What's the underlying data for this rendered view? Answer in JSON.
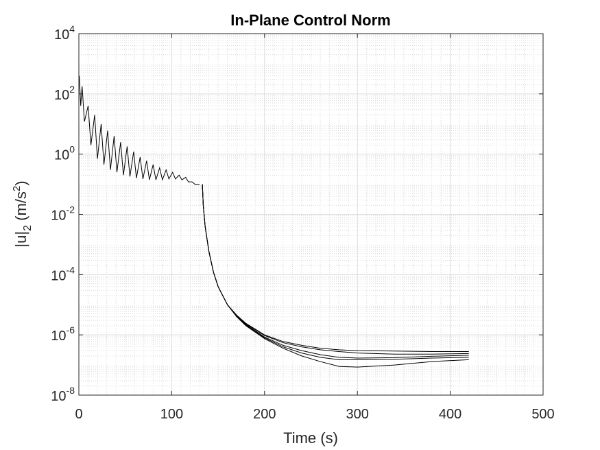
{
  "chart_data": {
    "type": "line",
    "title": "In-Plane Control Norm",
    "xlabel": "Time (s)",
    "ylabel": {
      "base": "|u|",
      "sub": "2",
      "unit_open": " (m/s",
      "unit_sup": "2",
      "unit_close": ")"
    },
    "xlim": [
      0,
      500
    ],
    "ylim": [
      1e-08,
      10000.0
    ],
    "yscale": "log",
    "grid": true,
    "minor_grid": true,
    "xticks": [
      {
        "value": 0,
        "label": "0"
      },
      {
        "value": 100,
        "label": "100"
      },
      {
        "value": 200,
        "label": "200"
      },
      {
        "value": 300,
        "label": "300"
      },
      {
        "value": 400,
        "label": "400"
      },
      {
        "value": 500,
        "label": "500"
      }
    ],
    "yticks": [
      {
        "value": -8,
        "base": "10",
        "exp": "-8"
      },
      {
        "value": -6,
        "base": "10",
        "exp": "-6"
      },
      {
        "value": -4,
        "base": "10",
        "exp": "-4"
      },
      {
        "value": -2,
        "base": "10",
        "exp": "-2"
      },
      {
        "value": 0,
        "base": "10",
        "exp": "0"
      },
      {
        "value": 2,
        "base": "10",
        "exp": "2"
      },
      {
        "value": 4,
        "base": "10",
        "exp": "4"
      }
    ],
    "line_color": "#000000",
    "oscillation": {
      "t_end": 132,
      "peaks": [
        [
          0.5,
          400
        ],
        [
          3.5,
          180
        ],
        [
          10,
          40
        ],
        [
          17,
          20
        ],
        [
          24,
          10
        ],
        [
          31,
          6
        ],
        [
          38,
          4
        ],
        [
          45,
          2.5
        ],
        [
          52,
          1.8
        ],
        [
          59,
          1.2
        ],
        [
          66,
          0.8
        ],
        [
          73,
          0.6
        ],
        [
          80,
          0.45
        ],
        [
          87,
          0.35
        ],
        [
          94,
          0.3
        ],
        [
          101,
          0.25
        ],
        [
          108,
          0.2
        ],
        [
          115,
          0.17
        ],
        [
          122,
          0.12
        ],
        [
          130,
          0.1
        ]
      ],
      "troughs": [
        [
          2,
          40
        ],
        [
          6,
          12
        ],
        [
          13,
          2
        ],
        [
          20,
          0.7
        ],
        [
          27,
          0.45
        ],
        [
          34,
          0.3
        ],
        [
          41,
          0.25
        ],
        [
          48,
          0.2
        ],
        [
          55,
          0.18
        ],
        [
          62,
          0.16
        ],
        [
          69,
          0.15
        ],
        [
          76,
          0.14
        ],
        [
          83,
          0.14
        ],
        [
          90,
          0.14
        ],
        [
          97,
          0.15
        ],
        [
          104,
          0.15
        ],
        [
          111,
          0.14
        ],
        [
          118,
          0.12
        ],
        [
          125,
          0.1
        ]
      ]
    },
    "series": [
      {
        "points": [
          [
            133,
            0.1
          ],
          [
            134,
            0.02
          ],
          [
            136,
            0.004
          ],
          [
            140,
            0.0006
          ],
          [
            145,
            0.00012
          ],
          [
            150,
            4e-05
          ],
          [
            160,
            1e-05
          ],
          [
            170,
            4.5e-06
          ],
          [
            180,
            2.4e-06
          ],
          [
            200,
            1e-06
          ],
          [
            220,
            6e-07
          ],
          [
            240,
            4.5e-07
          ],
          [
            260,
            3.6e-07
          ],
          [
            280,
            3.2e-07
          ],
          [
            300,
            3e-07
          ],
          [
            340,
            2.9e-07
          ],
          [
            380,
            2.8e-07
          ],
          [
            420,
            2.8e-07
          ]
        ]
      },
      {
        "points": [
          [
            133,
            0.1
          ],
          [
            134,
            0.02
          ],
          [
            136,
            0.004
          ],
          [
            140,
            0.0006
          ],
          [
            145,
            0.00012
          ],
          [
            150,
            4e-05
          ],
          [
            160,
            1e-05
          ],
          [
            170,
            4.3e-06
          ],
          [
            180,
            2.3e-06
          ],
          [
            200,
            9.5e-07
          ],
          [
            220,
            5.5e-07
          ],
          [
            240,
            4e-07
          ],
          [
            260,
            3.2e-07
          ],
          [
            280,
            2.8e-07
          ],
          [
            300,
            2.5e-07
          ],
          [
            340,
            2.3e-07
          ],
          [
            380,
            2.3e-07
          ],
          [
            420,
            2.4e-07
          ]
        ]
      },
      {
        "points": [
          [
            133,
            0.1
          ],
          [
            134,
            0.02
          ],
          [
            136,
            0.004
          ],
          [
            140,
            0.0006
          ],
          [
            145,
            0.00012
          ],
          [
            150,
            4e-05
          ],
          [
            160,
            1e-05
          ],
          [
            170,
            4.2e-06
          ],
          [
            180,
            2.2e-06
          ],
          [
            200,
            8.5e-07
          ],
          [
            220,
            4.5e-07
          ],
          [
            240,
            3e-07
          ],
          [
            260,
            2.2e-07
          ],
          [
            280,
            1.8e-07
          ],
          [
            300,
            1.7e-07
          ],
          [
            340,
            1.75e-07
          ],
          [
            380,
            1.95e-07
          ],
          [
            420,
            2.1e-07
          ]
        ]
      },
      {
        "points": [
          [
            133,
            0.1
          ],
          [
            134,
            0.02
          ],
          [
            136,
            0.004
          ],
          [
            140,
            0.0006
          ],
          [
            145,
            0.00012
          ],
          [
            150,
            4e-05
          ],
          [
            160,
            1e-05
          ],
          [
            170,
            4.1e-06
          ],
          [
            180,
            2.1e-06
          ],
          [
            200,
            8e-07
          ],
          [
            220,
            4e-07
          ],
          [
            240,
            2.5e-07
          ],
          [
            260,
            1.8e-07
          ],
          [
            280,
            1.5e-07
          ],
          [
            300,
            1.5e-07
          ],
          [
            340,
            1.55e-07
          ],
          [
            380,
            1.7e-07
          ],
          [
            420,
            1.8e-07
          ]
        ]
      },
      {
        "points": [
          [
            133,
            0.1
          ],
          [
            134,
            0.02
          ],
          [
            136,
            0.004
          ],
          [
            140,
            0.0006
          ],
          [
            145,
            0.00012
          ],
          [
            150,
            4e-05
          ],
          [
            160,
            1e-05
          ],
          [
            170,
            4e-06
          ],
          [
            180,
            2e-06
          ],
          [
            200,
            7.5e-07
          ],
          [
            220,
            3.6e-07
          ],
          [
            240,
            2e-07
          ],
          [
            260,
            1.3e-07
          ],
          [
            280,
            9e-08
          ],
          [
            300,
            8.5e-08
          ],
          [
            340,
            1e-07
          ],
          [
            380,
            1.3e-07
          ],
          [
            420,
            1.5e-07
          ]
        ]
      }
    ]
  }
}
